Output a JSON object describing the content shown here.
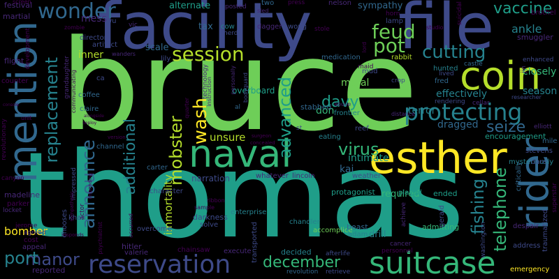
{
  "words": {
    "bruce": "bruce",
    "thomas": "thomas",
    "facility": "facility",
    "file": "file",
    "naval": "naval",
    "esther": "esther",
    "coin": "coin",
    "rider": "rider",
    "mention": "mention",
    "suitcase": "suitcase",
    "reservation": "reservation",
    "protecting": "protecting",
    "wonder": "wonder",
    "feud": "feud",
    "pot": "pot",
    "cutting": "cutting",
    "vaccine": "vaccine",
    "session": "session",
    "replacement": "replacement",
    "announce": "announce",
    "additional": "additional",
    "advanced": "advanced",
    "mobster": "mobster",
    "wash": "wash",
    "virus": "virus",
    "december": "december",
    "manor": "manor",
    "telephone": "telephone",
    "fishing": "fishing",
    "seize": "seize",
    "davy": "davy",
    "port": "port",
    "bomber": "bomber",
    "immortality": "immortality",
    "intimate": "intimate",
    "kai": "kai",
    "unsure": "unsure",
    "don": "don",
    "moral": "moral",
    "terror": "terror",
    "dragged": "dragged",
    "closely": "closely",
    "effectively": "effectively",
    "season": "season",
    "ankle": "ankle",
    "smuggler": "smuggler",
    "alternate": "alternate",
    "tax": "tax",
    "sympathy": "sympathy",
    "scale": "scale",
    "inner": "inner",
    "emergency": "emergency",
    "required": "required",
    "ended": "ended",
    "played": "played",
    "accomplice": "accomplice",
    "beast": "beast",
    "adam": "adam",
    "drill": "drill",
    "admitting": "admitting",
    "narration": "narration",
    "protagonist": "protagonist",
    "darkness": "darkness",
    "solve": "solve",
    "enterprise": "enterprise",
    "chandler": "chandler",
    "hitler": "hitler",
    "valerie": "valerie",
    "overcome": "overcome",
    "carter": "carter",
    "character": "character",
    "encouragement": "encouragement",
    "mysteriously": "mysteriously",
    "overboard": "overboard",
    "stabbed": "stabbed",
    "eating": "eating",
    "reef": "reef",
    "frontier": "frontier",
    "weather": "weather",
    "whatever": "whatever",
    "lincoln": "lincoln",
    "rabbit": "rabbit",
    "medication": "medication",
    "hunted": "hunted",
    "lived": "lived",
    "fred": "fred",
    "castle": "castle",
    "enhanced": "enhanced",
    "stevens": "stevens",
    "dare": "dare",
    "mile": "mile",
    "elliott": "elliott",
    "despair": "despair",
    "address": "address",
    "traumatized": "traumatized",
    "superstar": "superstar",
    "critically": "critically",
    "gerald": "gerald",
    "washington": "washington",
    "cancer": "cancer",
    "personnel": "personnel",
    "retrieve": "retrieve",
    "revolution": "revolution",
    "afterlife": "afterlife",
    "decided": "decided",
    "transported": "transported",
    "execute": "execute",
    "chainsaw": "chainsaw",
    "reported": "reported",
    "appeal": "appeal",
    "cost": "cost",
    "agreed": "agreed",
    "chooses": "chooses",
    "khan": "khan",
    "actor": "actor",
    "impressed": "impressed",
    "channel": "channel",
    "claire": "claire",
    "coffee": "coffee",
    "director": "director",
    "artifact": "artifact",
    "wanders": "wanders",
    "lily": "lily",
    "vic": "vic",
    "mess": "mess",
    "festival": "festival",
    "martial": "martial",
    "flight": "flight",
    "counter": "counter",
    "canyon": "canyon",
    "madeline": "madeline",
    "parker": "parker",
    "locket": "locket",
    "jerome": "jerome",
    "revolutionary": "revolutionary",
    "development": "development",
    "screen": "screen",
    "grandaughter": "grandaughter",
    "communicating": "communicating",
    "two": "two",
    "press": "press",
    "posted": "posted",
    "sled": "sled",
    "cow": "cow",
    "herd": "herd",
    "dagger": "dagger",
    "wong": "wong",
    "nelson": "nelson",
    "stole": "stole",
    "horn": "horn",
    "lamp": "lamp",
    "studio": "studio",
    "suicidal": "suicidal",
    "brothel": "brothel",
    "lord": "lord",
    "mud": "mud",
    "maid": "maid",
    "crop": "crop",
    "achieve": "achieve",
    "rendering": "rendering",
    "researcher": "researcher",
    "cellar": "cellar",
    "jin": "jin",
    "abuse": "abuse",
    "distance": "distance",
    "technology": "technology",
    "instruction": "instruction",
    "personally": "personally",
    "bodyguard": "bodyguard",
    "quarter": "quarter",
    "al": "al",
    "st": "st",
    "ribbon": "ribbon",
    "sample": "sample",
    "zombie": "zombie",
    "wu": "wu",
    "ca": "ca",
    "psychiatrist": "psychiatrist",
    "responds": "responds",
    "occurred": "occurred",
    "impending": "impending",
    "sympathetic": "sympathetic",
    "version": "version",
    "concealed": "concealed",
    "surgeon": "surgeon",
    "unit": "unit",
    "console": "console",
    "alongside": "alongside",
    "deploy": "deploy"
  }
}
